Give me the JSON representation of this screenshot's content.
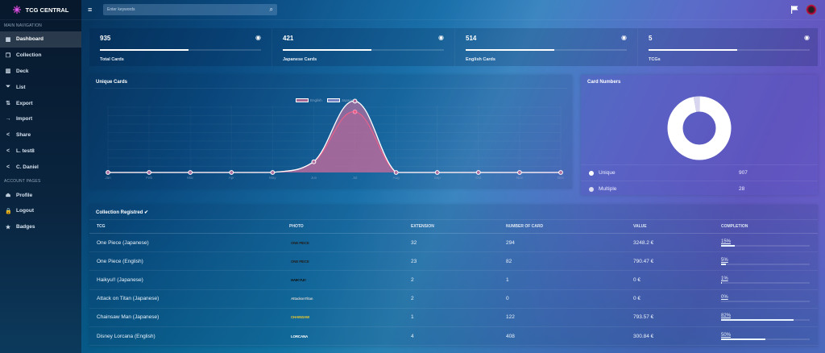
{
  "brand": {
    "name": "TCG CENTRAL"
  },
  "topbar": {
    "search_placeholder": "Enter keywords"
  },
  "sidebar": {
    "main_title": "MAIN NAVIGATION",
    "items": [
      {
        "label": "Dashboard",
        "icon": "dashboard-icon",
        "glyph": "▦",
        "active": true
      },
      {
        "label": "Collection",
        "icon": "collection-icon",
        "glyph": "❐"
      },
      {
        "label": "Deck",
        "icon": "deck-icon",
        "glyph": "▥"
      },
      {
        "label": "List",
        "icon": "filter-icon",
        "glyph": "⏷"
      },
      {
        "label": "Export",
        "icon": "export-icon",
        "glyph": "⇅"
      },
      {
        "label": "Import",
        "icon": "import-icon",
        "glyph": "→"
      },
      {
        "label": "Share",
        "icon": "share-icon",
        "glyph": "<"
      },
      {
        "label": "L. test8",
        "icon": "share-icon",
        "glyph": "<"
      },
      {
        "label": "C. Daniel",
        "icon": "share-icon",
        "glyph": "<"
      }
    ],
    "account_title": "ACCOUNT PAGES",
    "account_items": [
      {
        "label": "Profile",
        "icon": "user-icon",
        "glyph": "⏏"
      },
      {
        "label": "Logout",
        "icon": "lock-icon",
        "glyph": "🔒"
      },
      {
        "label": "Badges",
        "icon": "star-icon",
        "glyph": "★"
      }
    ]
  },
  "stats": [
    {
      "value": "935",
      "label": "Total Cards"
    },
    {
      "value": "421",
      "label": "Japanese Cards"
    },
    {
      "value": "514",
      "label": "English Cards"
    },
    {
      "value": "5",
      "label": "TCGs"
    }
  ],
  "chart_panel": {
    "title": "Unique Cards"
  },
  "donut_panel": {
    "title": "Card Numbers",
    "rows": [
      {
        "label": "Unique",
        "value": "907",
        "color": "#ffffff"
      },
      {
        "label": "Multiple",
        "value": "28",
        "color": "#dcdcf0"
      }
    ]
  },
  "chart_data": [
    {
      "type": "area",
      "title": "Unique Cards",
      "x": [
        "Jan",
        "Feb",
        "Mar",
        "Apr",
        "May",
        "Jun",
        "Jul",
        "Aug",
        "Sep",
        "Oct",
        "Nov",
        "Dec"
      ],
      "series": [
        {
          "name": "English",
          "color": "#b06fa0",
          "values": [
            0,
            0,
            0,
            0,
            0,
            60,
            400,
            0,
            0,
            0,
            0,
            0
          ]
        },
        {
          "name": "Japanese",
          "color": "#e0608a",
          "values": [
            0,
            0,
            0,
            0,
            0,
            60,
            340,
            0,
            0,
            0,
            0,
            0
          ]
        }
      ],
      "legend_position": "top",
      "grid": true
    },
    {
      "type": "pie",
      "title": "Card Numbers",
      "categories": [
        "Unique",
        "Multiple"
      ],
      "values": [
        907,
        28
      ]
    }
  ],
  "table": {
    "title": "Collection Registred ✔",
    "headers": [
      "TCG",
      "PHOTO",
      "EXTENSION",
      "NUMBER OF CARD",
      "VALUE",
      "COMPLETION"
    ],
    "rows": [
      {
        "tcg": "One Piece (Japanese)",
        "photo": "ONE PIECE",
        "photo_color": "#222",
        "extension": "32",
        "cards": "294",
        "value": "3248.2 €",
        "completion": "15%",
        "pct": 15
      },
      {
        "tcg": "One Piece (English)",
        "photo": "ONE PIECE",
        "photo_color": "#222",
        "extension": "23",
        "cards": "82",
        "value": "790.47 €",
        "completion": "5%",
        "pct": 5
      },
      {
        "tcg": "Haikyu!! (Japanese)",
        "photo": "HAIKYU!!",
        "photo_color": "#111",
        "extension": "2",
        "cards": "1",
        "value": "0 €",
        "completion": "1%",
        "pct": 1
      },
      {
        "tcg": "Attack on Titan (Japanese)",
        "photo": "AttackonTitan",
        "photo_color": "#ccc",
        "extension": "2",
        "cards": "0",
        "value": "0 €",
        "completion": "0%",
        "pct": 0
      },
      {
        "tcg": "Chainsaw Man (Japanese)",
        "photo": "CHAINSAW",
        "photo_color": "#e8c830",
        "extension": "1",
        "cards": "122",
        "value": "793.57 €",
        "completion": "82%",
        "pct": 82
      },
      {
        "tcg": "Disney Lorcana (English)",
        "photo": "LORCANA",
        "photo_color": "#fff",
        "extension": "4",
        "cards": "408",
        "value": "300.84 €",
        "completion": "50%",
        "pct": 50
      }
    ]
  }
}
